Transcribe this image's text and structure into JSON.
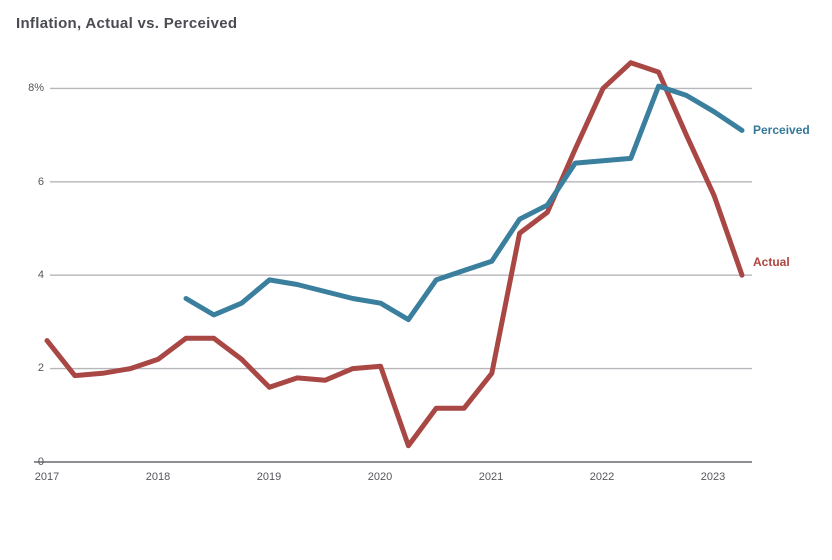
{
  "title": "Inflation, Actual vs. Perceived",
  "colors": {
    "actual_line": "#a94744",
    "perceived_line": "#3a7f9e",
    "title_text": "#4a4c52",
    "tick_text": "#56565c",
    "gridline": "#b6b6bb",
    "axis_line": "#8e8e93",
    "background": "#ffffff"
  },
  "y_axis": {
    "tick_labels": [
      "8%",
      "6",
      "4",
      "2",
      "0"
    ],
    "tick_values": [
      8,
      6,
      4,
      2,
      0
    ]
  },
  "x_axis": {
    "tick_labels": [
      "2017",
      "2018",
      "2019",
      "2020",
      "2021",
      "2022",
      "2023"
    ],
    "tick_values": [
      2017,
      2018,
      2019,
      2020,
      2021,
      2022,
      2023
    ]
  },
  "series_labels": {
    "perceived": "Perceived",
    "actual": "Actual"
  },
  "chart_data": {
    "type": "line",
    "title": "Inflation, Actual vs. Perceived",
    "xlabel": "",
    "ylabel": "",
    "x_unit": "quarters expressed as decimal years",
    "xlim": [
      2016.95,
      2023.6
    ],
    "ylim": [
      0,
      8.6
    ],
    "grid": "horizontal",
    "legend_position": "right-of-line-end labels",
    "series": [
      {
        "name": "Actual",
        "color": "#a94744",
        "x": [
          2017.0,
          2017.25,
          2017.5,
          2017.75,
          2018.0,
          2018.25,
          2018.5,
          2018.75,
          2019.0,
          2019.25,
          2019.5,
          2019.75,
          2020.0,
          2020.25,
          2020.5,
          2020.75,
          2021.0,
          2021.25,
          2021.5,
          2021.75,
          2022.0,
          2022.25,
          2022.5,
          2022.75,
          2023.0,
          2023.25
        ],
        "values": [
          2.6,
          1.85,
          1.9,
          2.0,
          2.2,
          2.65,
          2.65,
          2.2,
          1.6,
          1.8,
          1.75,
          2.0,
          2.05,
          0.35,
          1.15,
          1.15,
          1.9,
          4.9,
          5.35,
          6.7,
          8.0,
          8.55,
          8.35,
          7.0,
          5.7,
          4.0
        ]
      },
      {
        "name": "Perceived",
        "color": "#3a7f9e",
        "x": [
          2018.25,
          2018.5,
          2018.75,
          2019.0,
          2019.25,
          2019.5,
          2019.75,
          2020.0,
          2020.25,
          2020.5,
          2020.75,
          2021.0,
          2021.25,
          2021.5,
          2021.75,
          2022.0,
          2022.25,
          2022.5,
          2022.75,
          2023.0,
          2023.25
        ],
        "values": [
          3.5,
          3.15,
          3.4,
          3.9,
          3.8,
          3.65,
          3.5,
          3.4,
          3.05,
          3.9,
          4.1,
          4.3,
          5.2,
          5.5,
          6.4,
          6.45,
          6.5,
          8.05,
          7.85,
          7.5,
          7.1
        ]
      }
    ]
  }
}
